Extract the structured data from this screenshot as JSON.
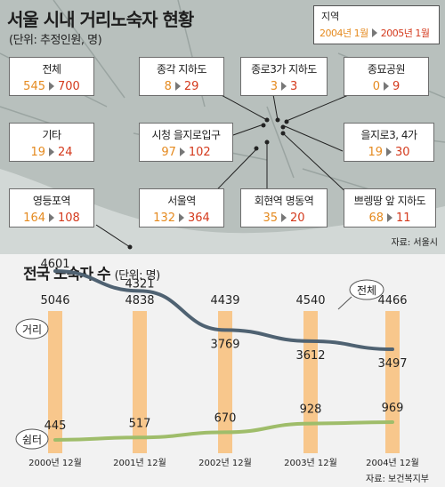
{
  "map": {
    "title": "서울 시내 거리노숙자 현황",
    "subtitle": "(단위: 추정인원, 명)",
    "legend": {
      "label": "지역",
      "from": "2004년 1월",
      "to": "2005년 1월"
    },
    "source": "자료: 서울시",
    "locations": [
      {
        "name": "전체",
        "v2004": "545",
        "v2005": "700"
      },
      {
        "name": "종각 지하도",
        "v2004": "8",
        "v2005": "29"
      },
      {
        "name": "종로3가 지하도",
        "v2004": "3",
        "v2005": "3"
      },
      {
        "name": "종묘공원",
        "v2004": "0",
        "v2005": "9"
      },
      {
        "name": "기타",
        "v2004": "19",
        "v2005": "24"
      },
      {
        "name": "시청 을지로입구",
        "v2004": "97",
        "v2005": "102"
      },
      {
        "name": "을지로3, 4가",
        "v2004": "19",
        "v2005": "30"
      },
      {
        "name": "영등포역",
        "v2004": "164",
        "v2005": "108"
      },
      {
        "name": "서울역",
        "v2004": "132",
        "v2005": "364"
      },
      {
        "name": "회현역 명동역",
        "v2004": "35",
        "v2005": "20"
      },
      {
        "name": "쁘렝땅 앞 지하도",
        "v2004": "68",
        "v2005": "11"
      }
    ],
    "colors": {
      "from": "#e58a1f",
      "to": "#d43a1d",
      "background": "#b8c0bd"
    }
  },
  "chart_data": {
    "type": "line",
    "title": "전국 노숙자 수",
    "unit_label": "(단위: 명)",
    "categories": [
      "2000년 12월",
      "2001년 12월",
      "2002년 12월",
      "2003년 12월",
      "2004년 12월"
    ],
    "total_label": "전체",
    "totals": [
      5046,
      4838,
      4439,
      4540,
      4466
    ],
    "series": [
      {
        "name": "거리",
        "values": [
          4601,
          4321,
          3769,
          3612,
          3497
        ],
        "color": "#4f6272"
      },
      {
        "name": "쉼터",
        "values": [
          445,
          517,
          670,
          928,
          969
        ],
        "color": "#9fbd6a"
      }
    ],
    "bar_color": "#f8c78c",
    "source": "자료: 보건복지부"
  }
}
